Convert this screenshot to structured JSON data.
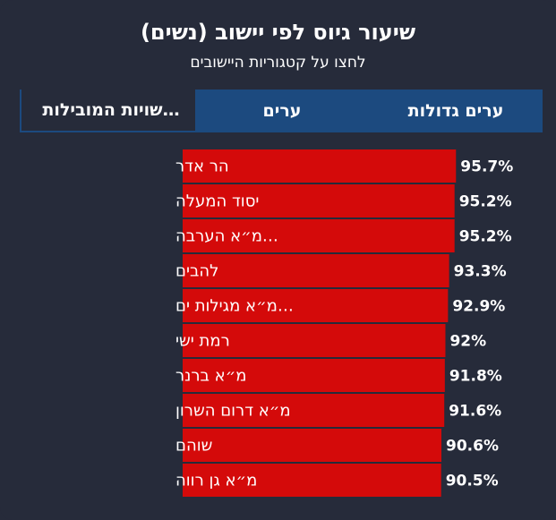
{
  "header": {
    "title": "שיעור גיוס לפי יישוב (נשים)",
    "subtitle": "לחצו על קטגוריות היישובים"
  },
  "tabs": [
    {
      "label": "ערים גדולות",
      "active": false
    },
    {
      "label": "ערים",
      "active": false
    },
    {
      "label": "…שויות המובילות",
      "active": true
    }
  ],
  "chart_data": {
    "type": "bar",
    "orientation": "horizontal",
    "title": "שיעור גיוס לפי יישוב (נשים)",
    "categories": [
      "הר אדר",
      "יסוד המעלה",
      "…מ״א הערבה",
      "להבים",
      "…מ״א מגילות ים",
      "רמת ישי",
      "מ״א ברנר",
      "מ״א דרום השרון",
      "שוהם",
      "מ״א גן רווה"
    ],
    "values": [
      95.7,
      95.2,
      95.2,
      93.3,
      92.9,
      92,
      91.8,
      91.6,
      90.6,
      90.5
    ],
    "value_labels": [
      "95.7%",
      "95.2%",
      "95.2%",
      "93.3%",
      "92.9%",
      "92%",
      "91.8%",
      "91.6%",
      "90.6%",
      "90.5%"
    ],
    "unit": "%",
    "xlim": [
      0,
      100
    ],
    "bar_color": "#d40a0a",
    "grid": false,
    "legend": "none"
  }
}
